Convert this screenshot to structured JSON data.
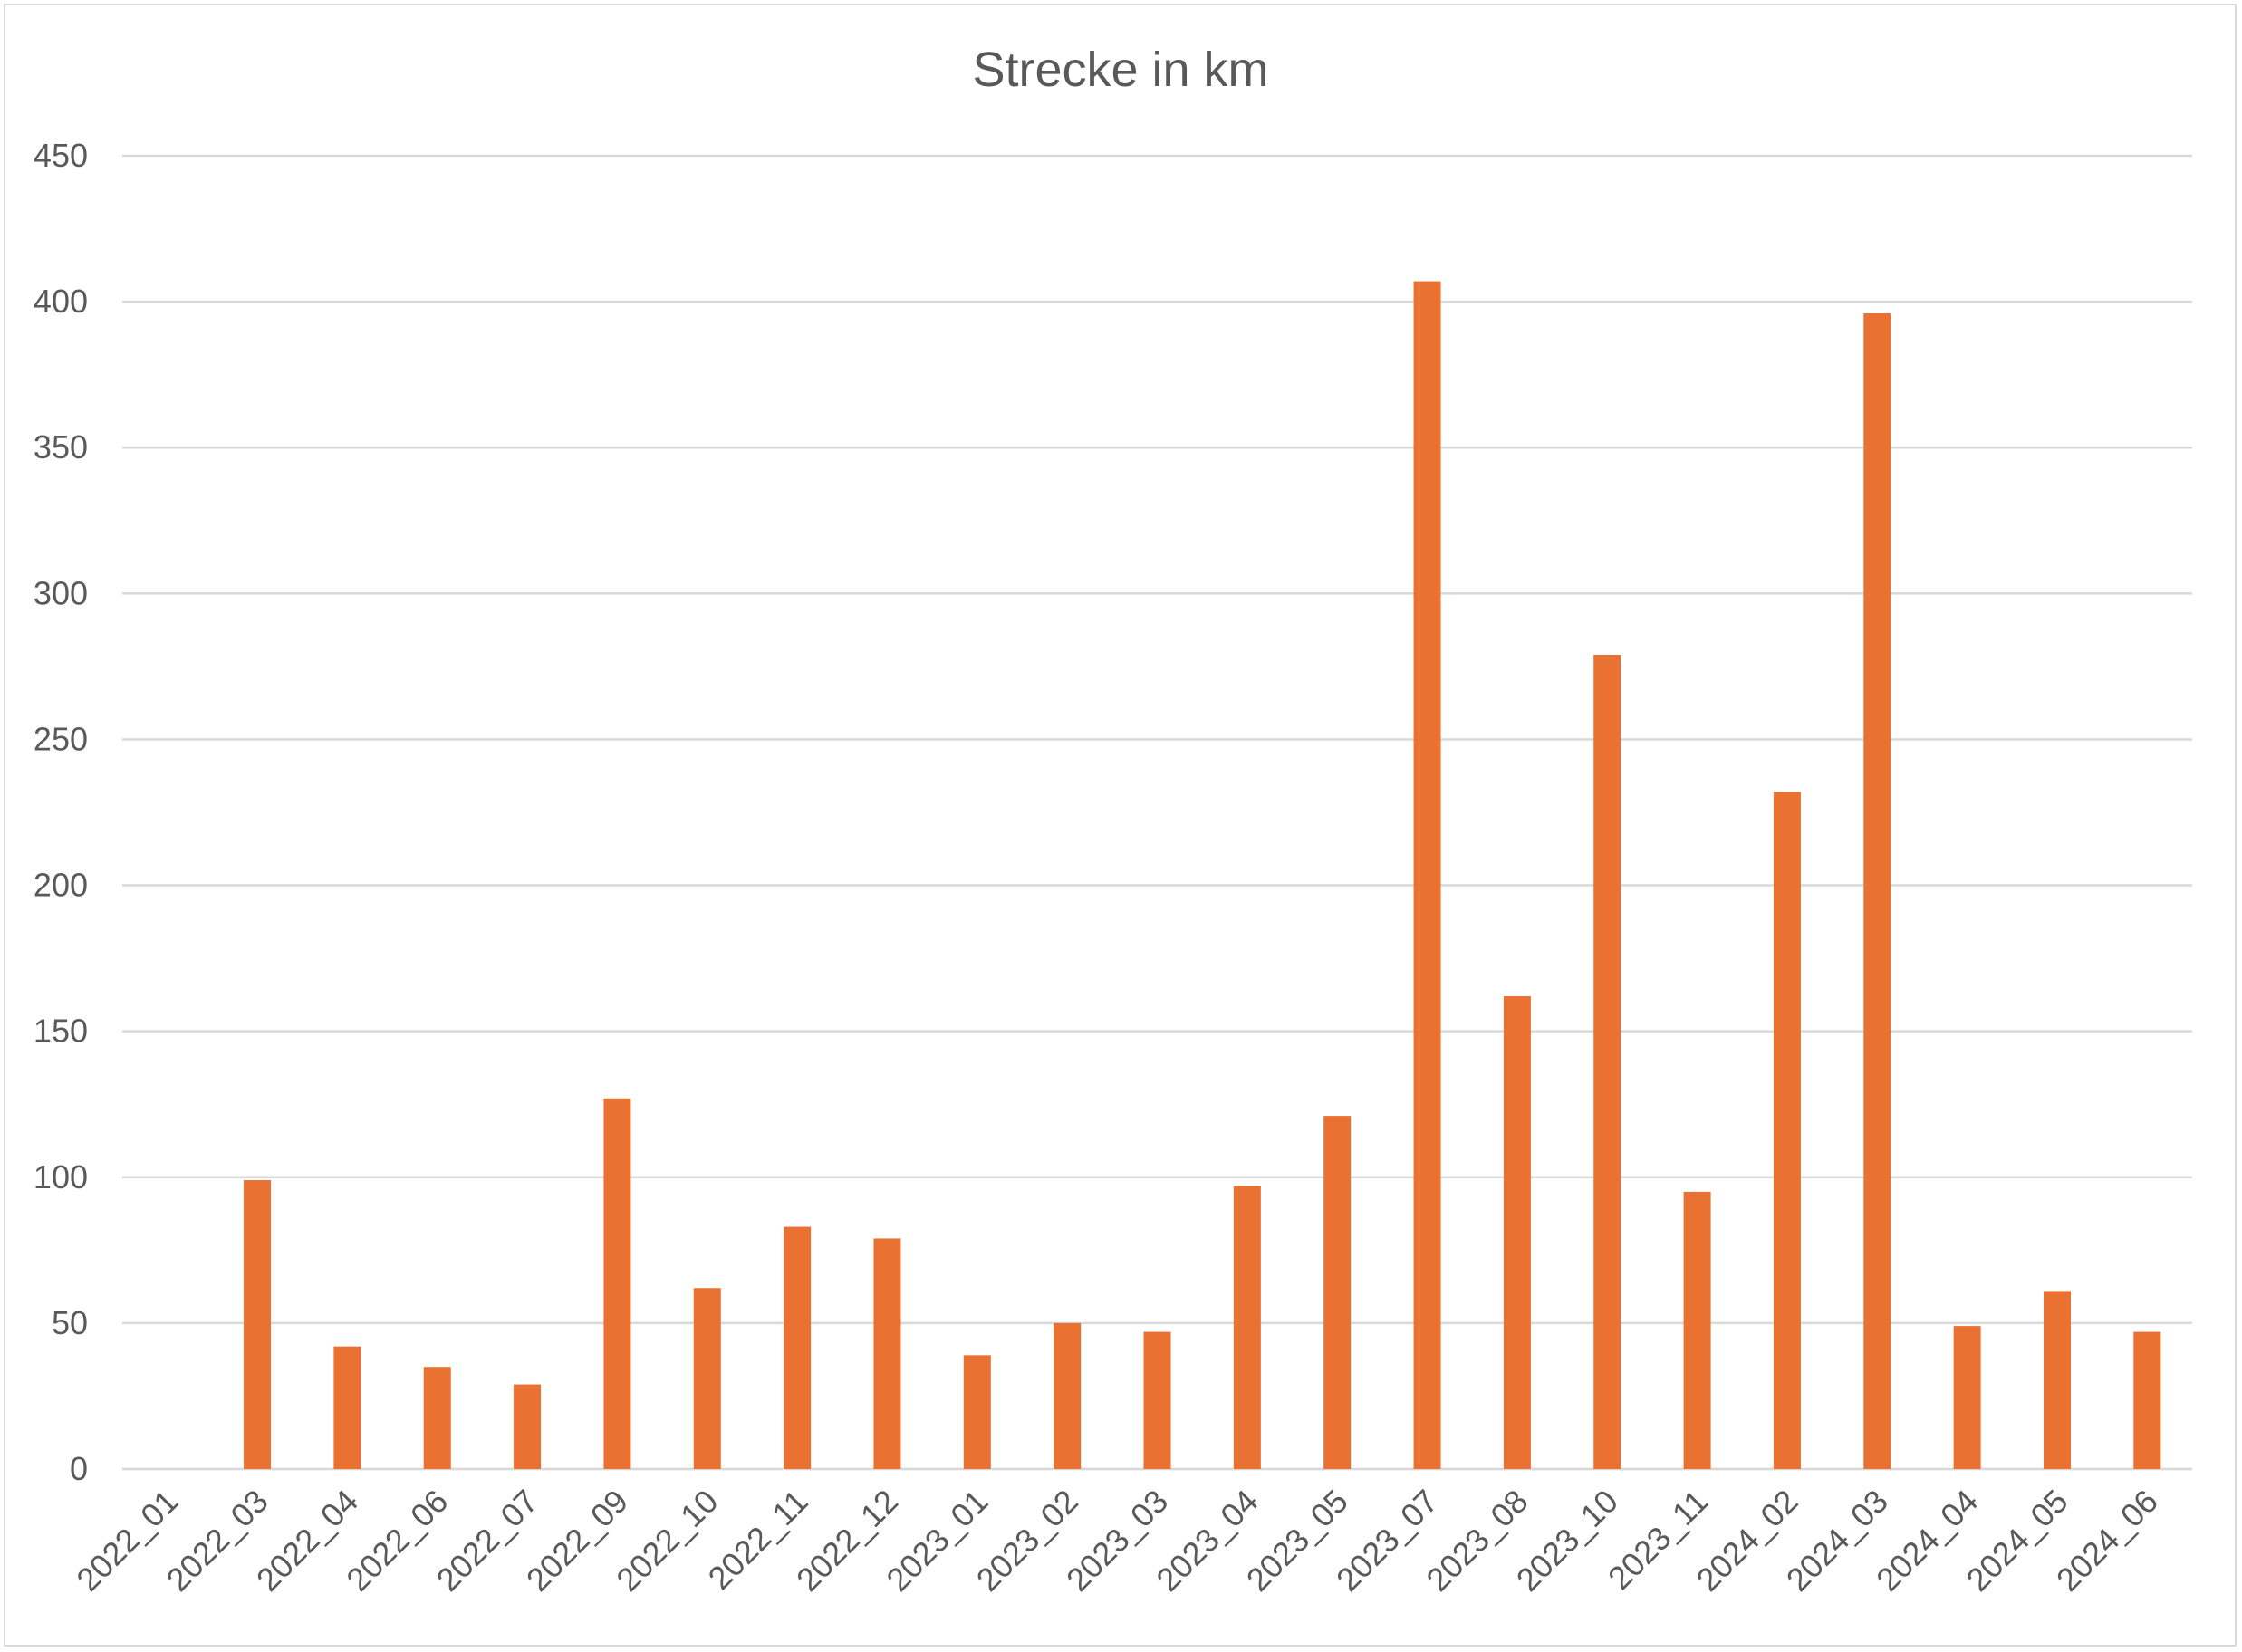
{
  "chart_data": {
    "type": "bar",
    "title": "Strecke in km",
    "xlabel": "",
    "ylabel": "",
    "ylim": [
      0,
      450
    ],
    "yticks": [
      0,
      50,
      100,
      150,
      200,
      250,
      300,
      350,
      400,
      450
    ],
    "grid": true,
    "legend": "none",
    "color": "#e97132",
    "categories": [
      "2022_01",
      "2022_03",
      "2022_04",
      "2022_06",
      "2022_07",
      "2022_09",
      "2022_10",
      "2022_11",
      "2022_12",
      "2023_01",
      "2023_02",
      "2023_03",
      "2023_04",
      "2023_05",
      "2023_07",
      "2023_08",
      "2023_10",
      "2023_11",
      "2024_02",
      "2024_03",
      "2024_04",
      "2024_05",
      "2024_06"
    ],
    "values": [
      0,
      99,
      42,
      35,
      29,
      127,
      62,
      83,
      79,
      39,
      50,
      47,
      97,
      121,
      407,
      162,
      279,
      95,
      232,
      396,
      49,
      61,
      47
    ]
  }
}
